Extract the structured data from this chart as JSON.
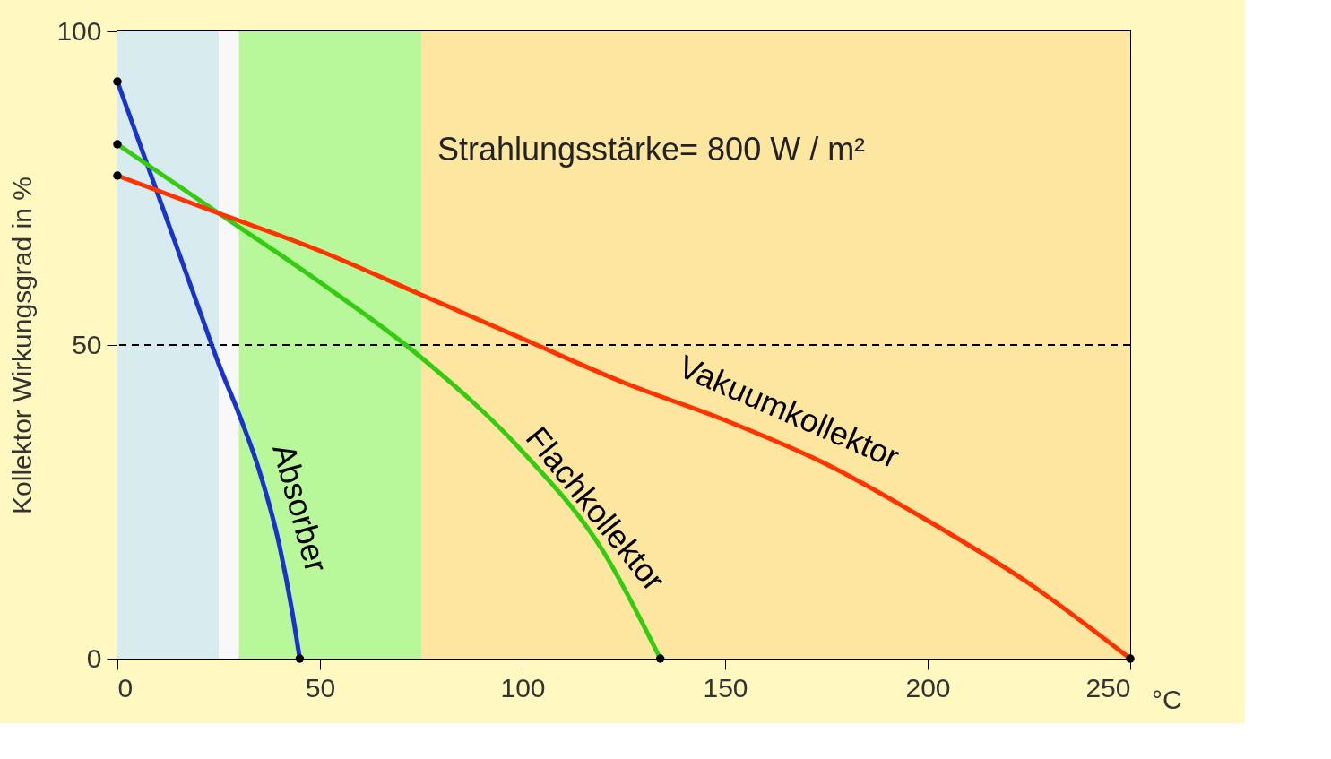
{
  "chart_data": {
    "type": "line",
    "ylabel": "Kollektor Wirkungsgrad in %",
    "xlabel": "°C",
    "xlim": [
      0,
      250
    ],
    "ylim": [
      0,
      100
    ],
    "xticks": [
      0,
      50,
      100,
      150,
      200,
      250
    ],
    "yticks": [
      0,
      50,
      100
    ],
    "grid": false,
    "marker": "none",
    "line_style": "solid",
    "annotations": [
      "Strahlungsstärke= 800 W / m²"
    ],
    "ref_lines": [
      {
        "axis": "y",
        "value": 50,
        "label": null,
        "color": "#000000",
        "line_style": "dashed"
      }
    ],
    "bands": [
      {
        "axis": "x",
        "from": 0,
        "to": 25,
        "label": null,
        "color": "#d8ecf0"
      },
      {
        "axis": "x",
        "from": 25,
        "to": 30,
        "label": null,
        "color": "#f8f8f8"
      },
      {
        "axis": "x",
        "from": 30,
        "to": 75,
        "label": null,
        "color": "#b8f89a"
      },
      {
        "axis": "x",
        "from": 75,
        "to": 250,
        "label": null,
        "color": "#fde6a0"
      }
    ],
    "series": [
      {
        "name": "Absorber",
        "color": "#1a33cc",
        "x": [
          0,
          5,
          10,
          15,
          20,
          25,
          30,
          35,
          40,
          43,
          45
        ],
        "values": [
          92,
          83,
          74,
          65,
          56,
          47,
          39,
          30,
          18,
          8,
          0
        ]
      },
      {
        "name": "Flachkollektor",
        "color": "#33cc11",
        "x": [
          0,
          25,
          50,
          75,
          100,
          120,
          134
        ],
        "values": [
          82,
          71,
          60,
          48,
          33,
          17,
          0
        ]
      },
      {
        "name": "Vakuumkollektor",
        "color": "#ff3300",
        "x": [
          0,
          25,
          50,
          75,
          100,
          125,
          150,
          175,
          200,
          225,
          250
        ],
        "values": [
          77,
          71,
          65,
          58,
          51,
          44,
          38,
          31,
          22,
          12,
          0
        ]
      },
      {
        "type": "scatter",
        "marker": "circle",
        "color": "#000000",
        "x": [
          0,
          0,
          0,
          45,
          134,
          250
        ],
        "values": [
          92,
          82,
          77,
          0,
          0,
          0
        ]
      }
    ]
  }
}
